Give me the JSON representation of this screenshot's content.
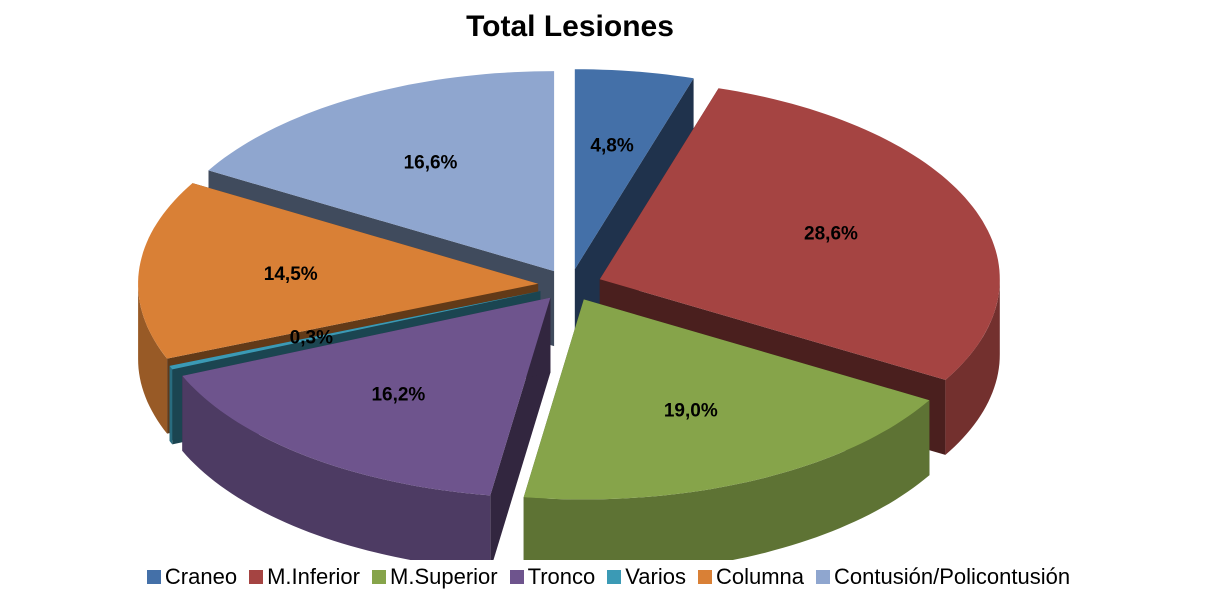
{
  "chart_data": {
    "type": "pie",
    "title": "Total Lesiones",
    "categories": [
      "Craneo",
      "M.Inferior",
      "M.Superior",
      "Tronco",
      "Varios",
      "Columna",
      "Contusión/Policontusión"
    ],
    "values": [
      4.8,
      28.6,
      19.0,
      16.2,
      0.3,
      14.5,
      16.6
    ],
    "value_labels": [
      "4,8%",
      "28,6%",
      "19,0%",
      "16,2%",
      "0,3%",
      "14,5%",
      "16,6%"
    ],
    "colors": [
      "#4470a8",
      "#a54442",
      "#86a44a",
      "#6e548d",
      "#3b9ab5",
      "#d98036",
      "#8fa6cf"
    ],
    "legend": "bottom"
  }
}
